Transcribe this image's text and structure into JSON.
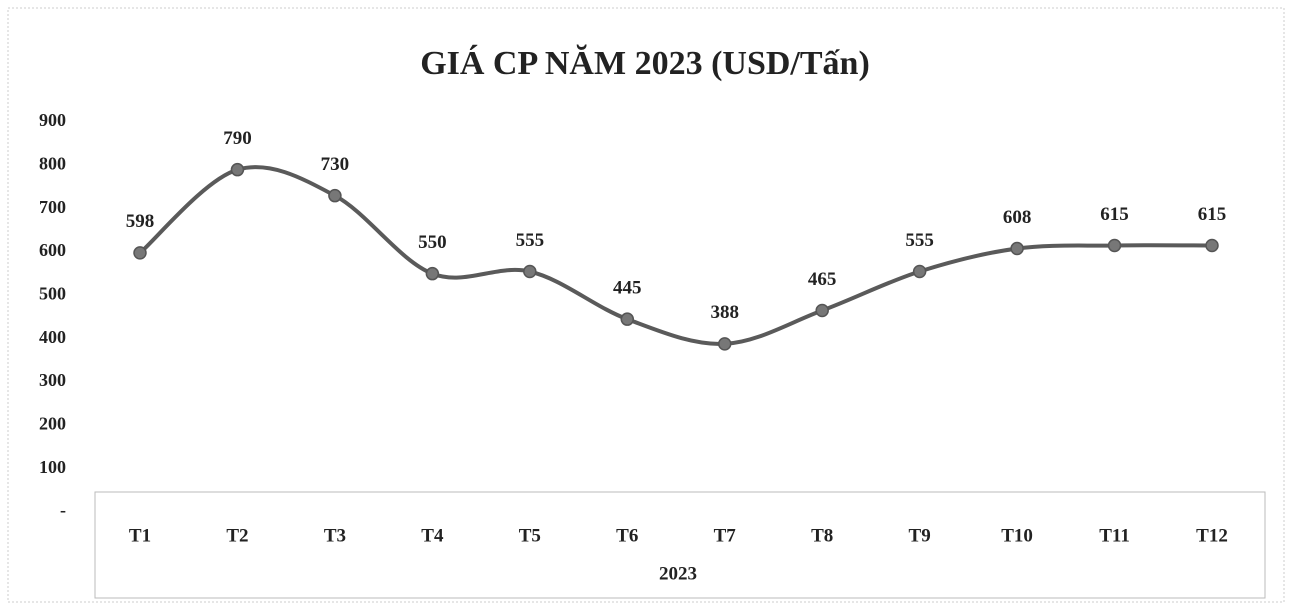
{
  "chart_data": {
    "type": "line",
    "title": "GIÁ CP NĂM 2023 (USD/Tấn)",
    "x_group_label": "2023",
    "categories": [
      "T1",
      "T2",
      "T3",
      "T4",
      "T5",
      "T6",
      "T7",
      "T8",
      "T9",
      "T10",
      "T11",
      "T12"
    ],
    "series": [
      {
        "name": "2023",
        "color": "#5a5a5a",
        "values": [
          598,
          790,
          730,
          550,
          555,
          445,
          388,
          465,
          555,
          608,
          615,
          615
        ]
      }
    ],
    "ylim": [
      0,
      900
    ],
    "yticks": [
      {
        "value": 0,
        "label": "-"
      },
      100,
      200,
      300,
      400,
      500,
      600,
      700,
      800,
      900
    ],
    "smooth": true,
    "markers": true,
    "legend": false
  }
}
